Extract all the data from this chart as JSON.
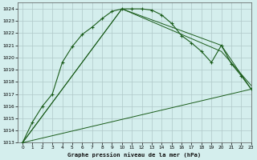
{
  "title": "Graphe pression niveau de la mer (hPa)",
  "bg_color": "#d4eeed",
  "grid_color": "#b0c8c8",
  "line_color": "#1a5c1a",
  "xlim": [
    -0.5,
    23
  ],
  "ylim": [
    1013,
    1024.5
  ],
  "xticks": [
    0,
    1,
    2,
    3,
    4,
    5,
    6,
    7,
    8,
    9,
    10,
    11,
    12,
    13,
    14,
    15,
    16,
    17,
    18,
    19,
    20,
    21,
    22,
    23
  ],
  "yticks": [
    1013,
    1014,
    1015,
    1016,
    1017,
    1018,
    1019,
    1020,
    1021,
    1022,
    1023,
    1024
  ],
  "series_main": {
    "x": [
      0,
      1,
      2,
      3,
      4,
      5,
      6,
      7,
      8,
      9,
      10,
      11,
      12,
      13,
      14,
      15,
      16,
      17,
      18,
      19,
      20,
      21,
      22,
      23
    ],
    "y": [
      1013.0,
      1014.7,
      1016.0,
      1017.0,
      1019.6,
      1020.9,
      1021.9,
      1022.5,
      1023.2,
      1023.8,
      1024.0,
      1024.0,
      1024.0,
      1023.9,
      1023.5,
      1022.8,
      1021.8,
      1021.2,
      1020.5,
      1019.6,
      1021.0,
      1019.5,
      1018.5,
      1017.4
    ]
  },
  "line_fan": [
    {
      "x": [
        0,
        10,
        20,
        23
      ],
      "y": [
        1013.0,
        1024.0,
        1021.0,
        1017.4
      ]
    },
    {
      "x": [
        0,
        10,
        20,
        23
      ],
      "y": [
        1013.0,
        1024.0,
        1020.5,
        1017.7
      ]
    },
    {
      "x": [
        0,
        23
      ],
      "y": [
        1013.0,
        1017.4
      ]
    }
  ]
}
